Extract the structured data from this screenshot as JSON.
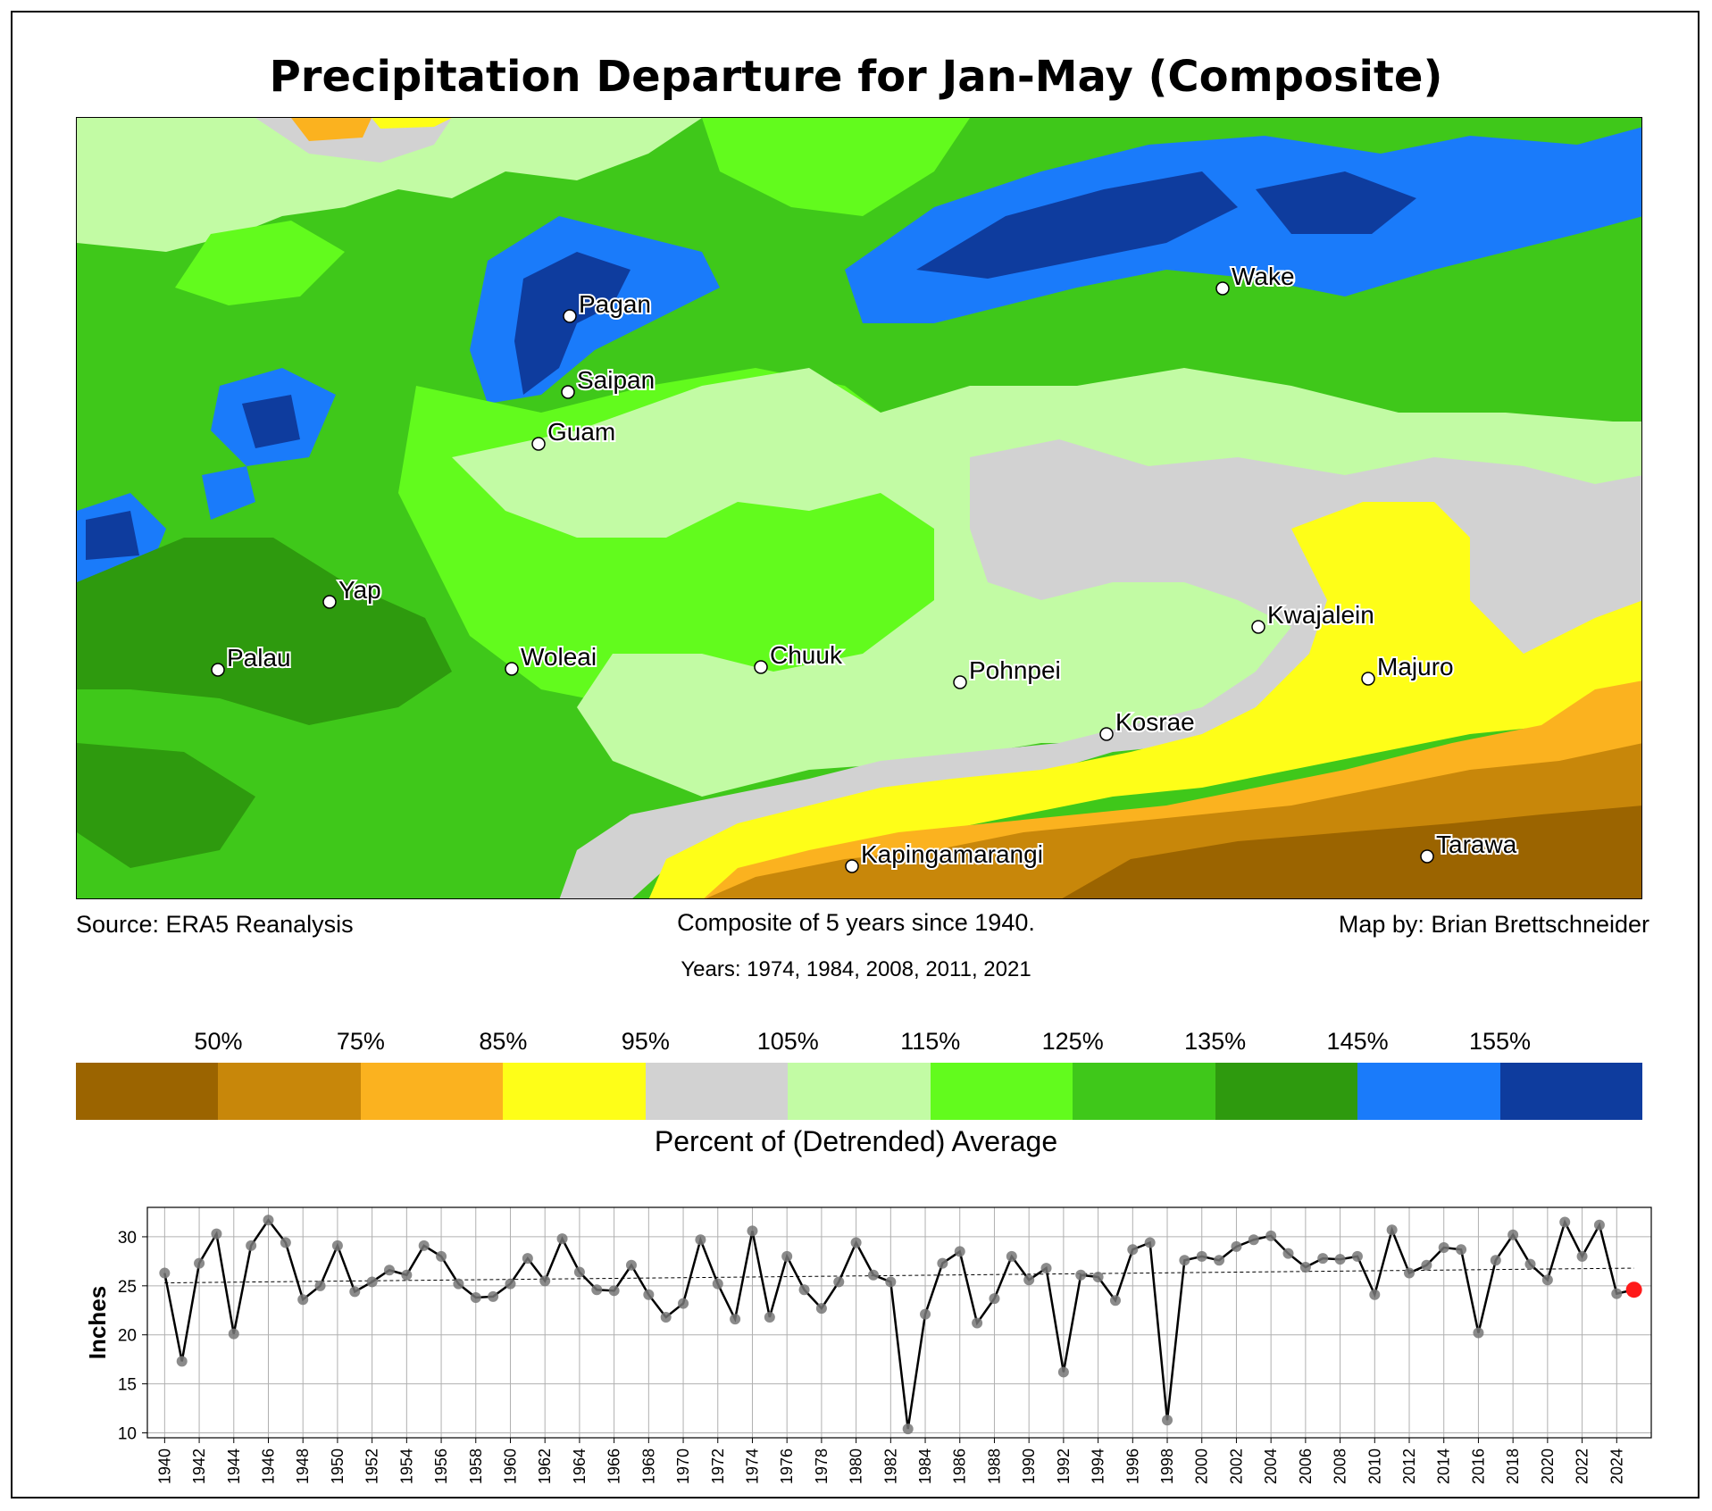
{
  "title": "Precipitation Departure for Jan-May (Composite)",
  "source": "Source: ERA5 Reanalysis",
  "composite_note": "Composite of 5 years since 1940.",
  "map_by": "Map by: Brian Brettschneider",
  "years_note": "Years: 1974, 1984, 2008, 2011, 2021",
  "colorbar": {
    "label": "Percent of (Detrended) Average",
    "ticks": [
      "50%",
      "75%",
      "85%",
      "95%",
      "105%",
      "115%",
      "125%",
      "135%",
      "145%",
      "155%"
    ],
    "colors": [
      "#9b6400",
      "#c8870a",
      "#fbb21f",
      "#fefe18",
      "#d2d2d2",
      "#c2fba4",
      "#62fb1d",
      "#3fc81a",
      "#2e9a0e",
      "#1a7bfa",
      "#0e3c9e"
    ]
  },
  "places": [
    {
      "name": "Wake"
    },
    {
      "name": "Pagan"
    },
    {
      "name": "Saipan"
    },
    {
      "name": "Guam"
    },
    {
      "name": "Yap"
    },
    {
      "name": "Palau"
    },
    {
      "name": "Woleai"
    },
    {
      "name": "Chuuk"
    },
    {
      "name": "Pohnpei"
    },
    {
      "name": "Kwajalein"
    },
    {
      "name": "Majuro"
    },
    {
      "name": "Kosrae"
    },
    {
      "name": "Kapingamarangi"
    },
    {
      "name": "Tarawa"
    }
  ],
  "chart_data": {
    "type": "line",
    "ylabel": "Inches",
    "ylim": [
      9.5,
      33
    ],
    "yticks": [
      10,
      15,
      20,
      25,
      30
    ],
    "x": [
      1940,
      1941,
      1942,
      1943,
      1944,
      1945,
      1946,
      1947,
      1948,
      1949,
      1950,
      1951,
      1952,
      1953,
      1954,
      1955,
      1956,
      1957,
      1958,
      1959,
      1960,
      1961,
      1962,
      1963,
      1964,
      1965,
      1966,
      1967,
      1968,
      1969,
      1970,
      1971,
      1972,
      1973,
      1974,
      1975,
      1976,
      1977,
      1978,
      1979,
      1980,
      1981,
      1982,
      1983,
      1984,
      1985,
      1986,
      1987,
      1988,
      1989,
      1990,
      1991,
      1992,
      1993,
      1994,
      1995,
      1996,
      1997,
      1998,
      1999,
      2000,
      2001,
      2002,
      2003,
      2004,
      2005,
      2006,
      2007,
      2008,
      2009,
      2010,
      2011,
      2012,
      2013,
      2014,
      2015,
      2016,
      2017,
      2018,
      2019,
      2020,
      2021,
      2022,
      2023,
      2024,
      2025
    ],
    "xtick_labels": [
      "1940",
      "1942",
      "1944",
      "1946",
      "1948",
      "1950",
      "1952",
      "1954",
      "1956",
      "1958",
      "1960",
      "1962",
      "1964",
      "1966",
      "1968",
      "1970",
      "1972",
      "1974",
      "1976",
      "1978",
      "1980",
      "1982",
      "1984",
      "1986",
      "1988",
      "1990",
      "1992",
      "1994",
      "1996",
      "1998",
      "2000",
      "2002",
      "2004",
      "2006",
      "2008",
      "2010",
      "2012",
      "2014",
      "2016",
      "2018",
      "2020",
      "2022",
      "2024"
    ],
    "values": [
      26.3,
      17.3,
      27.3,
      30.3,
      20.1,
      29.1,
      31.7,
      29.4,
      23.6,
      25.0,
      29.1,
      24.4,
      25.4,
      26.6,
      26.1,
      29.1,
      28.0,
      25.2,
      23.8,
      23.9,
      25.2,
      27.8,
      25.5,
      29.8,
      26.4,
      24.6,
      24.5,
      27.1,
      24.1,
      21.8,
      23.2,
      29.7,
      25.2,
      21.6,
      30.6,
      21.8,
      28.0,
      24.6,
      22.7,
      25.4,
      29.4,
      26.1,
      25.4,
      10.4,
      22.1,
      27.3,
      28.5,
      21.2,
      23.7,
      28.0,
      25.6,
      26.8,
      16.2,
      26.1,
      25.9,
      23.5,
      28.7,
      29.4,
      11.3,
      27.6,
      28.0,
      27.6,
      29.0,
      29.7,
      30.1,
      28.3,
      26.9,
      27.8,
      27.7,
      28.0,
      24.1,
      30.7,
      26.3,
      27.1,
      28.9,
      28.7,
      20.2,
      27.6,
      30.2,
      27.2,
      25.6,
      31.5,
      28.0,
      31.2,
      24.2,
      24.6
    ],
    "trend": {
      "start": 25.3,
      "end": 26.8
    },
    "highlight_year": 2025
  }
}
